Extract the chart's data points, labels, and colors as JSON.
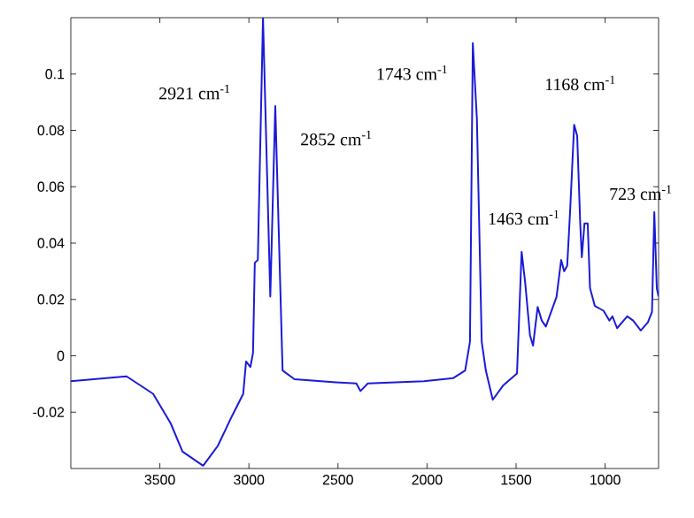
{
  "chart_data": {
    "type": "line",
    "x": [
      4000,
      3687,
      3538,
      3439,
      3373,
      3257,
      3175,
      3092,
      3032,
      3016,
      2992,
      2977,
      2967,
      2950,
      2921,
      2880,
      2852,
      2811,
      2744,
      2513,
      2397,
      2374,
      2332,
      2017,
      1852,
      1786,
      1759,
      1743,
      1720,
      1693,
      1670,
      1631,
      1571,
      1495,
      1469,
      1449,
      1422,
      1405,
      1379,
      1356,
      1333,
      1273,
      1247,
      1230,
      1213,
      1197,
      1174,
      1157,
      1140,
      1131,
      1116,
      1098,
      1085,
      1058,
      1009,
      976,
      959,
      933,
      876,
      843,
      800,
      760,
      737,
      724,
      710,
      700
    ],
    "values": [
      -0.009,
      -0.0073,
      -0.0135,
      -0.024,
      -0.034,
      -0.039,
      -0.032,
      -0.021,
      -0.0135,
      -0.002,
      -0.004,
      0.001,
      0.033,
      0.034,
      0.12,
      0.021,
      0.0886,
      -0.0052,
      -0.0083,
      -0.0094,
      -0.0098,
      -0.0125,
      -0.0098,
      -0.009,
      -0.0079,
      -0.0052,
      0.005,
      0.111,
      0.084,
      0.005,
      -0.0052,
      -0.0156,
      -0.0104,
      -0.0063,
      0.0369,
      0.026,
      0.0073,
      0.0036,
      0.0173,
      0.0125,
      0.0104,
      0.0209,
      0.034,
      0.03,
      0.032,
      0.051,
      0.082,
      0.078,
      0.047,
      0.035,
      0.047,
      0.047,
      0.024,
      0.0177,
      0.016,
      0.0125,
      0.014,
      0.0098,
      0.014,
      0.0125,
      0.009,
      0.0119,
      0.0156,
      0.051,
      0.024,
      0.021
    ],
    "color": "#1a1ad8",
    "line_style": "solid",
    "marker": "none",
    "grid": false,
    "xlim": [
      4000,
      700
    ],
    "ylim": [
      -0.04,
      0.12
    ],
    "xticks": [
      3500,
      3000,
      2500,
      2000,
      1500,
      1000
    ],
    "yticks": [
      -0.02,
      0,
      0.02,
      0.04,
      0.06,
      0.08,
      0.1
    ],
    "annotations": [
      "2921 cm$^{-1}$",
      "2852 cm$^{-1}$",
      "1743 cm$^{-1}$",
      "1463 cm$^{-1}$",
      "1168 cm$^{-1}$",
      "723 cm$^{-1}$"
    ]
  }
}
